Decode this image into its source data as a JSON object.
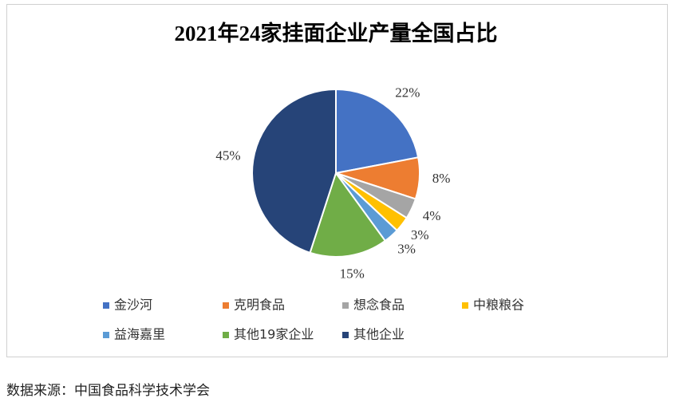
{
  "chart_data": {
    "type": "pie",
    "title": "2021年24家挂面企业产量全国占比",
    "categories": [
      "金沙河",
      "克明食品",
      "想念食品",
      "中粮粮谷",
      "益海嘉里",
      "其他19家企业",
      "其他企业"
    ],
    "values": [
      22,
      8,
      4,
      3,
      3,
      15,
      45
    ],
    "value_labels": [
      "22%",
      "8%",
      "4%",
      "3%",
      "3%",
      "15%",
      "45%"
    ],
    "colors": [
      "#4472c4",
      "#ed7d31",
      "#a5a5a5",
      "#ffc000",
      "#5b9bd5",
      "#70ad47",
      "#264478"
    ],
    "legend": "bottom"
  },
  "source": "数据来源：中国食品科学技术学会"
}
